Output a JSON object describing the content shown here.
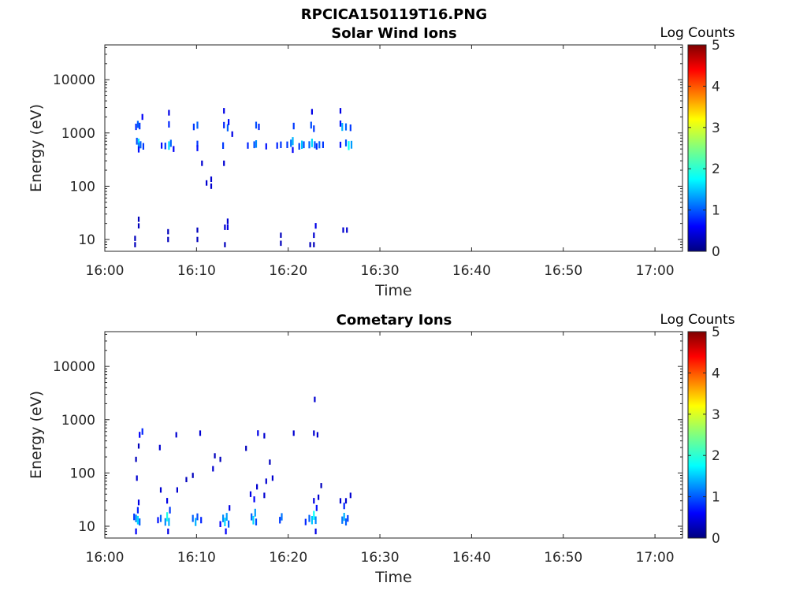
{
  "figure": {
    "title": "RPCICA150119T16.PNG"
  },
  "chart_data": [
    {
      "type": "heatmap",
      "title": "Solar Wind Ions",
      "xlabel": "Time",
      "ylabel": "Energy (eV)",
      "y_scale": "log",
      "xlim": [
        "16:00",
        "17:03"
      ],
      "ylim": [
        6,
        45000
      ],
      "x_ticks": [
        "16:00",
        "16:10",
        "16:20",
        "16:30",
        "16:40",
        "16:50",
        "17:00"
      ],
      "y_ticks": [
        "10",
        "100",
        "1000",
        "10000"
      ],
      "colorbar": {
        "label": "Log Counts",
        "ticks": [
          "0",
          "1",
          "2",
          "3",
          "4",
          "5"
        ],
        "range": [
          0,
          5
        ],
        "colormap": "jet"
      },
      "grid": false,
      "cells": [
        {
          "t": 3.3,
          "e": 8,
          "v": 0.2
        },
        {
          "t": 3.3,
          "e": 10.5,
          "v": 0.2
        },
        {
          "t": 3.7,
          "e": 18,
          "v": 0.2
        },
        {
          "t": 3.7,
          "e": 24,
          "v": 0.2
        },
        {
          "t": 3.4,
          "e": 1300,
          "v": 0.7
        },
        {
          "t": 3.6,
          "e": 1450,
          "v": 1.0
        },
        {
          "t": 3.8,
          "e": 1350,
          "v": 0.8
        },
        {
          "t": 3.5,
          "e": 700,
          "v": 0.9
        },
        {
          "t": 3.7,
          "e": 650,
          "v": 1.7
        },
        {
          "t": 3.7,
          "e": 560,
          "v": 1.2
        },
        {
          "t": 3.9,
          "e": 600,
          "v": 1.0
        },
        {
          "t": 3.7,
          "e": 490,
          "v": 0.6
        },
        {
          "t": 4.2,
          "e": 560,
          "v": 0.8
        },
        {
          "t": 4.1,
          "e": 2000,
          "v": 0.5
        },
        {
          "t": 6.2,
          "e": 580,
          "v": 0.6
        },
        {
          "t": 6.6,
          "e": 570,
          "v": 0.8
        },
        {
          "t": 7.0,
          "e": 580,
          "v": 1.6
        },
        {
          "t": 7.2,
          "e": 640,
          "v": 1.0
        },
        {
          "t": 7.5,
          "e": 500,
          "v": 0.5
        },
        {
          "t": 7.0,
          "e": 1450,
          "v": 0.7
        },
        {
          "t": 7.0,
          "e": 2400,
          "v": 0.4
        },
        {
          "t": 6.9,
          "e": 10,
          "v": 0.2
        },
        {
          "t": 6.9,
          "e": 14,
          "v": 0.2
        },
        {
          "t": 9.7,
          "e": 1300,
          "v": 0.8
        },
        {
          "t": 10.1,
          "e": 1400,
          "v": 1.0
        },
        {
          "t": 10.1,
          "e": 620,
          "v": 0.8
        },
        {
          "t": 10.1,
          "e": 520,
          "v": 0.6
        },
        {
          "t": 10.1,
          "e": 10,
          "v": 0.2
        },
        {
          "t": 10.1,
          "e": 15,
          "v": 0.2
        },
        {
          "t": 10.6,
          "e": 270,
          "v": 0.3
        },
        {
          "t": 11.1,
          "e": 115,
          "v": 0.3
        },
        {
          "t": 11.6,
          "e": 100,
          "v": 0.3
        },
        {
          "t": 11.6,
          "e": 135,
          "v": 0.3
        },
        {
          "t": 12.9,
          "e": 580,
          "v": 0.8
        },
        {
          "t": 13.0,
          "e": 1400,
          "v": 0.7
        },
        {
          "t": 13.4,
          "e": 1250,
          "v": 1.0
        },
        {
          "t": 13.5,
          "e": 1600,
          "v": 0.6
        },
        {
          "t": 13.0,
          "e": 2600,
          "v": 0.4
        },
        {
          "t": 13.9,
          "e": 950,
          "v": 0.4
        },
        {
          "t": 13.0,
          "e": 270,
          "v": 0.3
        },
        {
          "t": 13.1,
          "e": 17,
          "v": 0.3
        },
        {
          "t": 13.4,
          "e": 17,
          "v": 0.4
        },
        {
          "t": 13.1,
          "e": 8,
          "v": 0.2
        },
        {
          "t": 13.4,
          "e": 22,
          "v": 0.3
        },
        {
          "t": 15.6,
          "e": 580,
          "v": 0.7
        },
        {
          "t": 16.3,
          "e": 600,
          "v": 0.9
        },
        {
          "t": 16.5,
          "e": 620,
          "v": 1.2
        },
        {
          "t": 16.5,
          "e": 1400,
          "v": 0.9
        },
        {
          "t": 16.8,
          "e": 1300,
          "v": 0.7
        },
        {
          "t": 17.6,
          "e": 560,
          "v": 0.6
        },
        {
          "t": 18.8,
          "e": 580,
          "v": 0.7
        },
        {
          "t": 19.2,
          "e": 600,
          "v": 0.8
        },
        {
          "t": 19.2,
          "e": 8.5,
          "v": 0.2
        },
        {
          "t": 19.2,
          "e": 12,
          "v": 0.2
        },
        {
          "t": 19.9,
          "e": 600,
          "v": 0.8
        },
        {
          "t": 20.3,
          "e": 640,
          "v": 1.1
        },
        {
          "t": 20.5,
          "e": 700,
          "v": 1.4
        },
        {
          "t": 20.5,
          "e": 480,
          "v": 0.5
        },
        {
          "t": 20.6,
          "e": 1350,
          "v": 0.8
        },
        {
          "t": 21.2,
          "e": 560,
          "v": 0.8
        },
        {
          "t": 21.5,
          "e": 600,
          "v": 1.5
        },
        {
          "t": 21.7,
          "e": 600,
          "v": 0.9
        },
        {
          "t": 22.3,
          "e": 600,
          "v": 1.0
        },
        {
          "t": 22.6,
          "e": 650,
          "v": 1.6
        },
        {
          "t": 22.9,
          "e": 600,
          "v": 1.0
        },
        {
          "t": 22.5,
          "e": 1400,
          "v": 0.9
        },
        {
          "t": 22.8,
          "e": 1200,
          "v": 0.8
        },
        {
          "t": 22.6,
          "e": 2500,
          "v": 0.4
        },
        {
          "t": 23.1,
          "e": 560,
          "v": 0.7
        },
        {
          "t": 23.4,
          "e": 600,
          "v": 1.0
        },
        {
          "t": 23.8,
          "e": 600,
          "v": 0.8
        },
        {
          "t": 22.4,
          "e": 8,
          "v": 0.2
        },
        {
          "t": 22.8,
          "e": 12,
          "v": 0.3
        },
        {
          "t": 23.0,
          "e": 18,
          "v": 0.4
        },
        {
          "t": 22.8,
          "e": 8,
          "v": 0.2
        },
        {
          "t": 25.7,
          "e": 1500,
          "v": 0.6
        },
        {
          "t": 25.7,
          "e": 2600,
          "v": 0.4
        },
        {
          "t": 25.9,
          "e": 1300,
          "v": 1.4
        },
        {
          "t": 26.3,
          "e": 1300,
          "v": 1.0
        },
        {
          "t": 26.8,
          "e": 1250,
          "v": 0.8
        },
        {
          "t": 25.7,
          "e": 600,
          "v": 0.6
        },
        {
          "t": 26.3,
          "e": 650,
          "v": 0.9
        },
        {
          "t": 26.6,
          "e": 580,
          "v": 1.8
        },
        {
          "t": 26.9,
          "e": 600,
          "v": 1.3
        },
        {
          "t": 26.0,
          "e": 15,
          "v": 0.3
        },
        {
          "t": 26.4,
          "e": 15,
          "v": 0.3
        }
      ]
    },
    {
      "type": "heatmap",
      "title": "Cometary Ions",
      "xlabel": "Time",
      "ylabel": "Energy (eV)",
      "y_scale": "log",
      "xlim": [
        "16:00",
        "17:03"
      ],
      "ylim": [
        6,
        45000
      ],
      "x_ticks": [
        "16:00",
        "16:10",
        "16:20",
        "16:30",
        "16:40",
        "16:50",
        "17:00"
      ],
      "y_ticks": [
        "10",
        "100",
        "1000",
        "10000"
      ],
      "colorbar": {
        "label": "Log Counts",
        "ticks": [
          "0",
          "1",
          "2",
          "3",
          "4",
          "5"
        ],
        "range": [
          0,
          5
        ],
        "colormap": "jet"
      },
      "grid": false,
      "cells": [
        {
          "t": 3.2,
          "e": 15,
          "v": 0.8
        },
        {
          "t": 3.4,
          "e": 14,
          "v": 1.2
        },
        {
          "t": 3.6,
          "e": 13,
          "v": 1.6
        },
        {
          "t": 3.8,
          "e": 12,
          "v": 1.0
        },
        {
          "t": 3.6,
          "e": 20,
          "v": 0.7
        },
        {
          "t": 3.4,
          "e": 8,
          "v": 0.5
        },
        {
          "t": 3.7,
          "e": 28,
          "v": 0.4
        },
        {
          "t": 3.5,
          "e": 80,
          "v": 0.3
        },
        {
          "t": 3.4,
          "e": 180,
          "v": 0.2
        },
        {
          "t": 3.7,
          "e": 320,
          "v": 0.2
        },
        {
          "t": 3.8,
          "e": 520,
          "v": 0.5
        },
        {
          "t": 4.1,
          "e": 600,
          "v": 0.7
        },
        {
          "t": 5.8,
          "e": 13,
          "v": 0.6
        },
        {
          "t": 6.1,
          "e": 14,
          "v": 1.0
        },
        {
          "t": 6.6,
          "e": 12,
          "v": 1.2
        },
        {
          "t": 6.8,
          "e": 15,
          "v": 1.9
        },
        {
          "t": 7.0,
          "e": 12,
          "v": 1.4
        },
        {
          "t": 7.1,
          "e": 20,
          "v": 0.8
        },
        {
          "t": 6.8,
          "e": 30,
          "v": 0.4
        },
        {
          "t": 6.1,
          "e": 48,
          "v": 0.3
        },
        {
          "t": 6.0,
          "e": 300,
          "v": 0.3
        },
        {
          "t": 6.9,
          "e": 8,
          "v": 0.4
        },
        {
          "t": 7.8,
          "e": 520,
          "v": 0.3
        },
        {
          "t": 7.9,
          "e": 48,
          "v": 0.3
        },
        {
          "t": 8.9,
          "e": 75,
          "v": 0.2
        },
        {
          "t": 9.6,
          "e": 14,
          "v": 1.0
        },
        {
          "t": 9.9,
          "e": 12,
          "v": 1.4
        },
        {
          "t": 10.1,
          "e": 15,
          "v": 0.9
        },
        {
          "t": 10.5,
          "e": 13,
          "v": 0.7
        },
        {
          "t": 10.4,
          "e": 560,
          "v": 0.3
        },
        {
          "t": 9.6,
          "e": 90,
          "v": 0.2
        },
        {
          "t": 12.0,
          "e": 210,
          "v": 0.2
        },
        {
          "t": 11.8,
          "e": 120,
          "v": 0.3
        },
        {
          "t": 12.6,
          "e": 180,
          "v": 0.2
        },
        {
          "t": 12.6,
          "e": 11,
          "v": 0.5
        },
        {
          "t": 12.9,
          "e": 14,
          "v": 1.2
        },
        {
          "t": 13.1,
          "e": 12,
          "v": 1.6
        },
        {
          "t": 13.3,
          "e": 15,
          "v": 1.3
        },
        {
          "t": 13.5,
          "e": 11,
          "v": 1.0
        },
        {
          "t": 13.2,
          "e": 8,
          "v": 0.5
        },
        {
          "t": 13.6,
          "e": 22,
          "v": 0.4
        },
        {
          "t": 15.4,
          "e": 290,
          "v": 0.2
        },
        {
          "t": 15.9,
          "e": 40,
          "v": 0.4
        },
        {
          "t": 16.0,
          "e": 15,
          "v": 1.0
        },
        {
          "t": 16.2,
          "e": 13,
          "v": 1.6
        },
        {
          "t": 16.4,
          "e": 18,
          "v": 1.3
        },
        {
          "t": 16.5,
          "e": 12,
          "v": 0.9
        },
        {
          "t": 16.3,
          "e": 32,
          "v": 0.5
        },
        {
          "t": 16.6,
          "e": 55,
          "v": 0.3
        },
        {
          "t": 16.7,
          "e": 560,
          "v": 0.4
        },
        {
          "t": 17.4,
          "e": 38,
          "v": 0.3
        },
        {
          "t": 17.6,
          "e": 70,
          "v": 0.3
        },
        {
          "t": 18.0,
          "e": 160,
          "v": 0.2
        },
        {
          "t": 18.3,
          "e": 80,
          "v": 0.3
        },
        {
          "t": 17.4,
          "e": 500,
          "v": 0.3
        },
        {
          "t": 19.1,
          "e": 13,
          "v": 0.8
        },
        {
          "t": 19.3,
          "e": 15,
          "v": 1.1
        },
        {
          "t": 20.6,
          "e": 560,
          "v": 0.3
        },
        {
          "t": 21.9,
          "e": 12,
          "v": 0.7
        },
        {
          "t": 22.3,
          "e": 14,
          "v": 1.0
        },
        {
          "t": 22.6,
          "e": 13,
          "v": 1.5
        },
        {
          "t": 22.8,
          "e": 16,
          "v": 1.8
        },
        {
          "t": 23.0,
          "e": 13,
          "v": 1.2
        },
        {
          "t": 23.1,
          "e": 22,
          "v": 0.6
        },
        {
          "t": 22.8,
          "e": 30,
          "v": 0.4
        },
        {
          "t": 23.3,
          "e": 35,
          "v": 0.3
        },
        {
          "t": 23.6,
          "e": 58,
          "v": 0.2
        },
        {
          "t": 22.9,
          "e": 2400,
          "v": 0.3
        },
        {
          "t": 22.8,
          "e": 560,
          "v": 0.3
        },
        {
          "t": 23.0,
          "e": 8,
          "v": 0.4
        },
        {
          "t": 23.2,
          "e": 520,
          "v": 0.3
        },
        {
          "t": 25.7,
          "e": 30,
          "v": 0.3
        },
        {
          "t": 25.9,
          "e": 13,
          "v": 1.1
        },
        {
          "t": 26.1,
          "e": 15,
          "v": 1.4
        },
        {
          "t": 26.3,
          "e": 12,
          "v": 1.0
        },
        {
          "t": 26.5,
          "e": 14,
          "v": 0.8
        },
        {
          "t": 26.1,
          "e": 24,
          "v": 0.7
        },
        {
          "t": 26.3,
          "e": 30,
          "v": 0.3
        },
        {
          "t": 26.8,
          "e": 38,
          "v": 0.3
        }
      ]
    }
  ]
}
